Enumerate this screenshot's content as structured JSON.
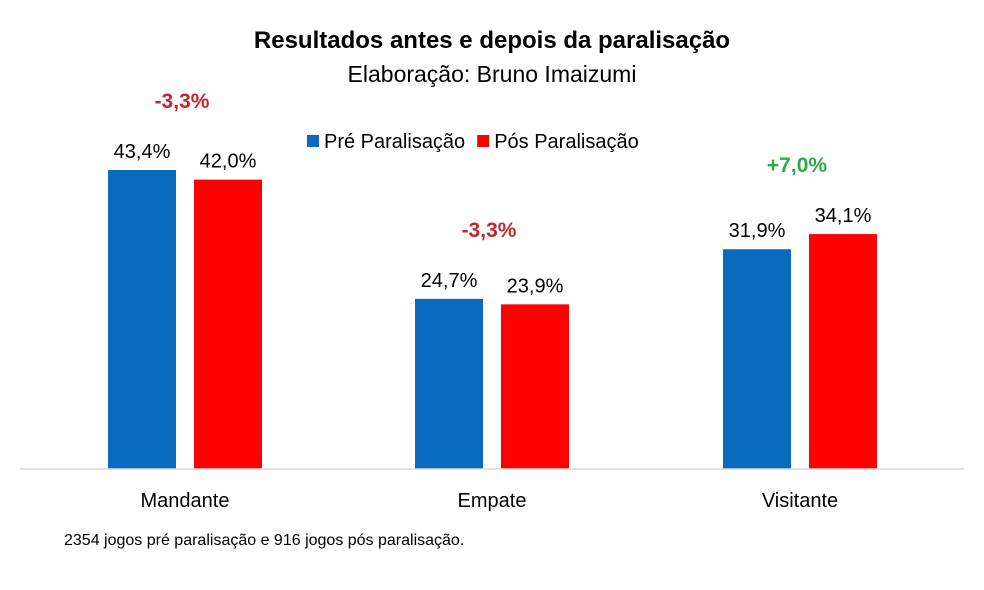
{
  "chart_data": {
    "type": "bar",
    "title": "Resultados antes e depois da paralisação",
    "subtitle": "Elaboração: Bruno Imaizumi",
    "categories": [
      "Mandante",
      "Empate",
      "Visitante"
    ],
    "series": [
      {
        "name": "Pré Paralisação",
        "color": "#0A6ABF",
        "values": [
          43.4,
          24.7,
          31.9
        ],
        "labels": [
          "43,4%",
          "24,7%",
          "31,9%"
        ]
      },
      {
        "name": "Pós Paralisação",
        "color": "#FF0000",
        "values": [
          42.0,
          23.9,
          34.1
        ],
        "labels": [
          "42,0%",
          "23,9%",
          "34,1%"
        ]
      }
    ],
    "annotations": [
      {
        "category": "Mandante",
        "text": "-3,3%",
        "color": "#C0272D"
      },
      {
        "category": "Empate",
        "text": "-3,3%",
        "color": "#C0272D"
      },
      {
        "category": "Visitante",
        "text": "+7,0%",
        "color": "#2EA84F"
      }
    ],
    "ylim": [
      0,
      47
    ],
    "grid": false,
    "legend_position": "top-center",
    "footnote": "2354 jogos pré paralisação e 916 jogos pós paralisação."
  }
}
